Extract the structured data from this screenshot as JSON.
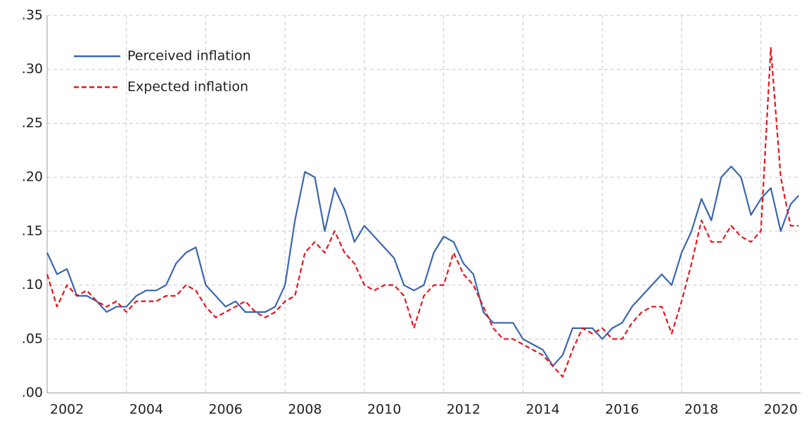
{
  "chart_data": {
    "type": "line",
    "x": [
      2002,
      2002.25,
      2002.5,
      2002.75,
      2003,
      2003.25,
      2003.5,
      2003.75,
      2004,
      2004.25,
      2004.5,
      2004.75,
      2005,
      2005.25,
      2005.5,
      2005.75,
      2006,
      2006.25,
      2006.5,
      2006.75,
      2007,
      2007.25,
      2007.5,
      2007.75,
      2008,
      2008.25,
      2008.5,
      2008.75,
      2009,
      2009.25,
      2009.5,
      2009.75,
      2010,
      2010.25,
      2010.5,
      2010.75,
      2011,
      2011.25,
      2011.5,
      2011.75,
      2012,
      2012.25,
      2012.5,
      2012.75,
      2013,
      2013.25,
      2013.5,
      2013.75,
      2014,
      2014.25,
      2014.5,
      2014.75,
      2015,
      2015.25,
      2015.5,
      2015.75,
      2016,
      2016.25,
      2016.5,
      2016.75,
      2017,
      2017.25,
      2017.5,
      2017.75,
      2018,
      2018.25,
      2018.5,
      2018.75,
      2019,
      2019.25,
      2019.5,
      2019.75,
      2020,
      2020.25,
      2020.5,
      2020.75,
      2020.95
    ],
    "series": [
      {
        "name": "Perceived inflation",
        "color": "#3a65b0",
        "dash": false,
        "values": [
          0.13,
          0.11,
          0.115,
          0.09,
          0.09,
          0.085,
          0.075,
          0.08,
          0.08,
          0.09,
          0.095,
          0.095,
          0.1,
          0.12,
          0.13,
          0.135,
          0.1,
          0.09,
          0.08,
          0.085,
          0.075,
          0.075,
          0.075,
          0.08,
          0.1,
          0.16,
          0.205,
          0.2,
          0.15,
          0.19,
          0.17,
          0.14,
          0.155,
          0.145,
          0.135,
          0.125,
          0.1,
          0.095,
          0.1,
          0.13,
          0.145,
          0.14,
          0.12,
          0.11,
          0.075,
          0.065,
          0.065,
          0.065,
          0.05,
          0.045,
          0.04,
          0.025,
          0.035,
          0.06,
          0.06,
          0.06,
          0.05,
          0.06,
          0.065,
          0.08,
          0.09,
          0.1,
          0.11,
          0.1,
          0.13,
          0.15,
          0.18,
          0.16,
          0.2,
          0.21,
          0.2,
          0.165,
          0.18,
          0.19,
          0.15,
          0.175,
          0.183
        ]
      },
      {
        "name": "Expected inflation",
        "color": "#e8141c",
        "dash": true,
        "values": [
          0.11,
          0.08,
          0.1,
          0.09,
          0.095,
          0.085,
          0.08,
          0.085,
          0.075,
          0.085,
          0.085,
          0.085,
          0.09,
          0.09,
          0.1,
          0.095,
          0.08,
          0.07,
          0.075,
          0.08,
          0.085,
          0.075,
          0.07,
          0.075,
          0.085,
          0.09,
          0.13,
          0.14,
          0.13,
          0.15,
          0.13,
          0.12,
          0.1,
          0.095,
          0.1,
          0.1,
          0.09,
          0.06,
          0.09,
          0.1,
          0.1,
          0.13,
          0.11,
          0.1,
          0.08,
          0.06,
          0.05,
          0.05,
          0.045,
          0.04,
          0.035,
          0.025,
          0.015,
          0.04,
          0.06,
          0.055,
          0.06,
          0.05,
          0.05,
          0.065,
          0.075,
          0.08,
          0.08,
          0.055,
          0.085,
          0.12,
          0.16,
          0.14,
          0.14,
          0.155,
          0.145,
          0.14,
          0.15,
          0.32,
          0.2,
          0.155,
          0.155
        ]
      }
    ],
    "xlim": [
      2002,
      2021
    ],
    "xticks": [
      2002,
      2004,
      2006,
      2008,
      2010,
      2012,
      2014,
      2016,
      2018,
      2020
    ],
    "ylim": [
      0,
      0.35
    ],
    "yticks": [
      {
        "value": 0,
        "label": ".00"
      },
      {
        "value": 0.05,
        "label": ".05"
      },
      {
        "value": 0.1,
        "label": ".10"
      },
      {
        "value": 0.15,
        "label": ".15"
      },
      {
        "value": 0.2,
        "label": ".20"
      },
      {
        "value": 0.25,
        "label": ".25"
      },
      {
        "value": 0.3,
        "label": ".30"
      },
      {
        "value": 0.35,
        "label": ".35"
      }
    ],
    "grid": true,
    "legend": "upper left"
  }
}
